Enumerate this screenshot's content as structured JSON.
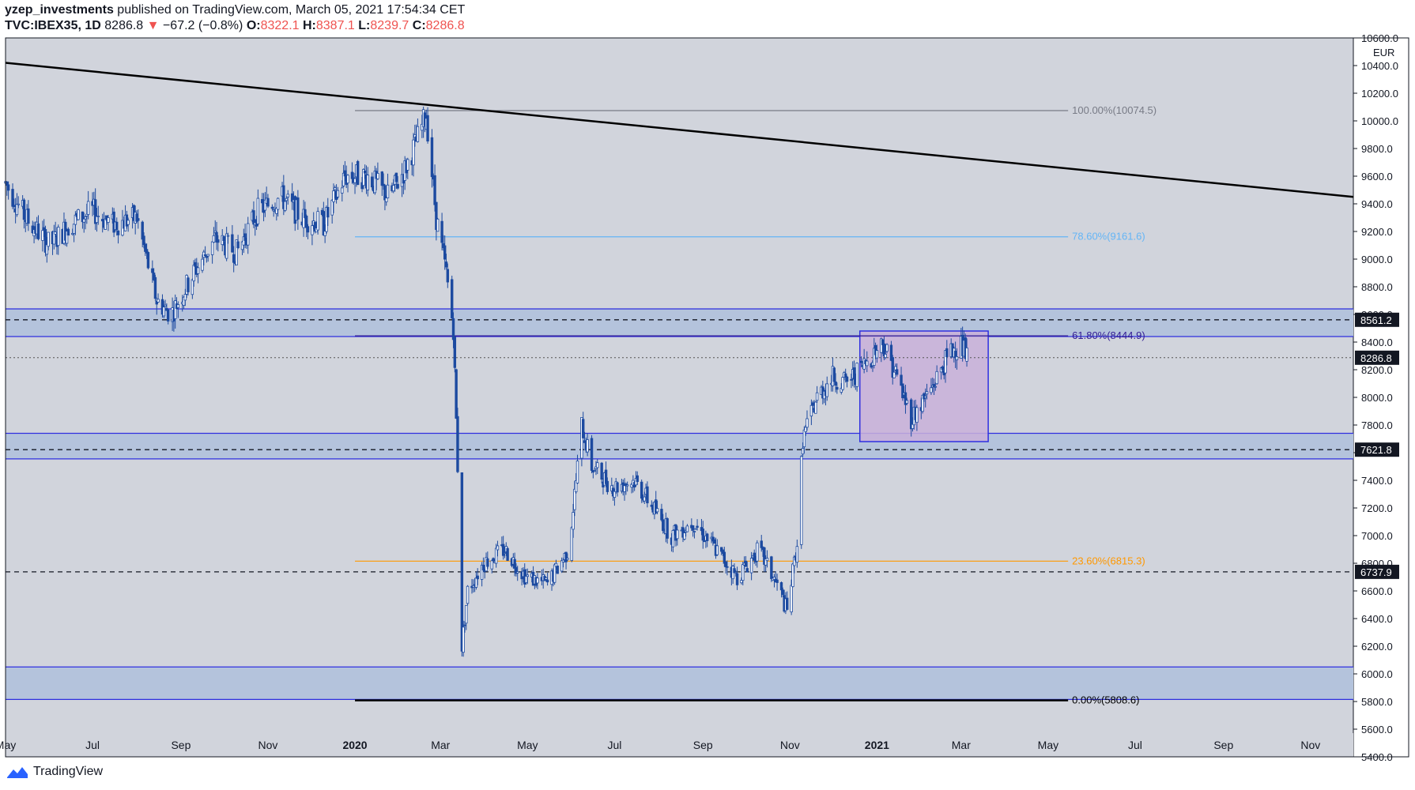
{
  "header": {
    "publisher": "yzep_investments",
    "published_text": "published on TradingView.com, March 05, 2021 17:54:34 CET",
    "symbol": "TVC:IBEX35, 1D",
    "last": "8286.8",
    "change_arrow": "▼",
    "change": "−67.2 (−0.8%)",
    "o_label": "O:",
    "o_value": "8322.1",
    "h_label": "H:",
    "h_value": "8387.1",
    "l_label": "L:",
    "l_value": "8239.7",
    "c_label": "C:",
    "c_value": "8286.8"
  },
  "footer": {
    "brand": "TradingView"
  },
  "colors": {
    "plot_bg": "#d1d4dc",
    "candle": "#1c4aa0",
    "zone_fill": "#b4c3dc",
    "zone_border": "#2f2fe0",
    "box_fill": "#c9b0d9",
    "trendline": "#000000",
    "fib_100": "#787b86",
    "fib_786": "#64b5f6",
    "fib_618": "#311b92",
    "fib_236": "#ff9800",
    "fib_0": "#000000"
  },
  "chart_data": {
    "type": "candlestick",
    "timeframe": "1D",
    "currency": "EUR",
    "ylim": [
      5400,
      10600
    ],
    "y_ticks": [
      5400,
      5600,
      5800,
      6000,
      6200,
      6400,
      6600,
      6800,
      7000,
      7200,
      7400,
      7600,
      7800,
      8000,
      8200,
      8400,
      8600,
      8800,
      9000,
      9200,
      9400,
      9600,
      9800,
      10000,
      10200,
      10400,
      10600
    ],
    "y_tick_labels": [
      "5400.0",
      "5600.0",
      "5800.0",
      "6000.0",
      "6200.0",
      "6400.0",
      "6600.0",
      "6800.0",
      "7000.0",
      "7200.0",
      "7400.0",
      "7600.0",
      "7800.0",
      "8000.0",
      "8200.0",
      "8400.0",
      "8600.0",
      "8800.0",
      "9000.0",
      "9200.0",
      "9400.0",
      "9600.0",
      "9800.0",
      "10000.0",
      "10200.0",
      "10400.0",
      "10600.0"
    ],
    "x_range": [
      "2019-05-01",
      "2021-12-01"
    ],
    "x_ticks": [
      {
        "label": "May",
        "date": "2019-05-01",
        "bold": false
      },
      {
        "label": "Jul",
        "date": "2019-07-01",
        "bold": false
      },
      {
        "label": "Sep",
        "date": "2019-09-01",
        "bold": false
      },
      {
        "label": "Nov",
        "date": "2019-11-01",
        "bold": false
      },
      {
        "label": "2020",
        "date": "2020-01-01",
        "bold": true
      },
      {
        "label": "Mar",
        "date": "2020-03-01",
        "bold": false
      },
      {
        "label": "May",
        "date": "2020-05-01",
        "bold": false
      },
      {
        "label": "Jul",
        "date": "2020-07-01",
        "bold": false
      },
      {
        "label": "Sep",
        "date": "2020-09-01",
        "bold": false
      },
      {
        "label": "Nov",
        "date": "2020-11-01",
        "bold": false
      },
      {
        "label": "2021",
        "date": "2021-01-01",
        "bold": true
      },
      {
        "label": "Mar",
        "date": "2021-03-01",
        "bold": false
      },
      {
        "label": "May",
        "date": "2021-05-01",
        "bold": false
      },
      {
        "label": "Jul",
        "date": "2021-07-01",
        "bold": false
      },
      {
        "label": "Sep",
        "date": "2021-09-01",
        "bold": false
      },
      {
        "label": "Nov",
        "date": "2021-11-01",
        "bold": false
      }
    ],
    "price_path": [
      [
        "2019-05-01",
        9550
      ],
      [
        "2019-05-15",
        9300
      ],
      [
        "2019-06-01",
        9100
      ],
      [
        "2019-06-15",
        9250
      ],
      [
        "2019-07-01",
        9350
      ],
      [
        "2019-07-15",
        9250
      ],
      [
        "2019-08-01",
        9300
      ],
      [
        "2019-08-15",
        8700
      ],
      [
        "2019-08-25",
        8600
      ],
      [
        "2019-09-10",
        8900
      ],
      [
        "2019-09-25",
        9150
      ],
      [
        "2019-10-10",
        9050
      ],
      [
        "2019-10-25",
        9350
      ],
      [
        "2019-11-10",
        9450
      ],
      [
        "2019-11-25",
        9300
      ],
      [
        "2019-12-10",
        9250
      ],
      [
        "2019-12-25",
        9600
      ],
      [
        "2020-01-10",
        9600
      ],
      [
        "2020-01-25",
        9450
      ],
      [
        "2020-02-05",
        9650
      ],
      [
        "2020-02-15",
        9900
      ],
      [
        "2020-02-20",
        10050
      ],
      [
        "2020-02-27",
        9300
      ],
      [
        "2020-03-05",
        8900
      ],
      [
        "2020-03-10",
        8500
      ],
      [
        "2020-03-13",
        7500
      ],
      [
        "2020-03-16",
        6200
      ],
      [
        "2020-03-20",
        6600
      ],
      [
        "2020-03-31",
        6800
      ],
      [
        "2020-04-15",
        6900
      ],
      [
        "2020-04-30",
        6700
      ],
      [
        "2020-05-15",
        6650
      ],
      [
        "2020-05-30",
        6900
      ],
      [
        "2020-06-08",
        7800
      ],
      [
        "2020-06-15",
        7500
      ],
      [
        "2020-06-30",
        7350
      ],
      [
        "2020-07-15",
        7400
      ],
      [
        "2020-07-25",
        7250
      ],
      [
        "2020-08-10",
        7000
      ],
      [
        "2020-08-25",
        7100
      ],
      [
        "2020-09-10",
        6900
      ],
      [
        "2020-09-25",
        6700
      ],
      [
        "2020-10-10",
        6900
      ],
      [
        "2020-10-25",
        6600
      ],
      [
        "2020-10-30",
        6450
      ],
      [
        "2020-11-06",
        6950
      ],
      [
        "2020-11-10",
        7700
      ],
      [
        "2020-11-20",
        8000
      ],
      [
        "2020-12-01",
        8150
      ],
      [
        "2020-12-10",
        8100
      ],
      [
        "2020-12-20",
        8200
      ],
      [
        "2021-01-05",
        8400
      ],
      [
        "2021-01-15",
        8150
      ],
      [
        "2021-01-25",
        7850
      ],
      [
        "2021-02-01",
        7950
      ],
      [
        "2021-02-10",
        8100
      ],
      [
        "2021-02-20",
        8300
      ],
      [
        "2021-02-28",
        8400
      ],
      [
        "2021-03-05",
        8290
      ]
    ],
    "trendline": {
      "from": [
        "2019-05-01",
        10420
      ],
      "to": [
        "2021-12-01",
        9450
      ]
    },
    "fibonacci": {
      "start": "2020-01-01",
      "end": "2021-05-15",
      "levels": [
        {
          "ratio": "100.00%",
          "price": 10074.5,
          "label": "100.00%(10074.5)",
          "color_key": "fib_100"
        },
        {
          "ratio": "78.60%",
          "price": 9161.6,
          "label": "78.60%(9161.6)",
          "color_key": "fib_786"
        },
        {
          "ratio": "61.80%",
          "price": 8444.9,
          "label": "61.80%(8444.9)",
          "color_key": "fib_618"
        },
        {
          "ratio": "23.60%",
          "price": 6815.3,
          "label": "23.60%(6815.3)",
          "color_key": "fib_236"
        },
        {
          "ratio": "0.00%",
          "price": 5808.6,
          "label": "0.00%(5808.6)",
          "color_key": "fib_0"
        }
      ]
    },
    "zones": [
      {
        "top": 8640,
        "bottom": 8440
      },
      {
        "top": 7740,
        "bottom": 7555
      },
      {
        "top": 6050,
        "bottom": 5815
      }
    ],
    "dashed_levels": [
      {
        "price": 8561.2,
        "label": "8561.2"
      },
      {
        "price": 7621.8,
        "label": "7621.8"
      },
      {
        "price": 6737.9,
        "label": "6737.9"
      }
    ],
    "last_price": {
      "price": 8286.8,
      "label": "8286.8"
    },
    "consolidation_box": {
      "start": "2020-12-20",
      "end": "2021-03-20",
      "top": 8480,
      "bottom": 7680
    }
  }
}
